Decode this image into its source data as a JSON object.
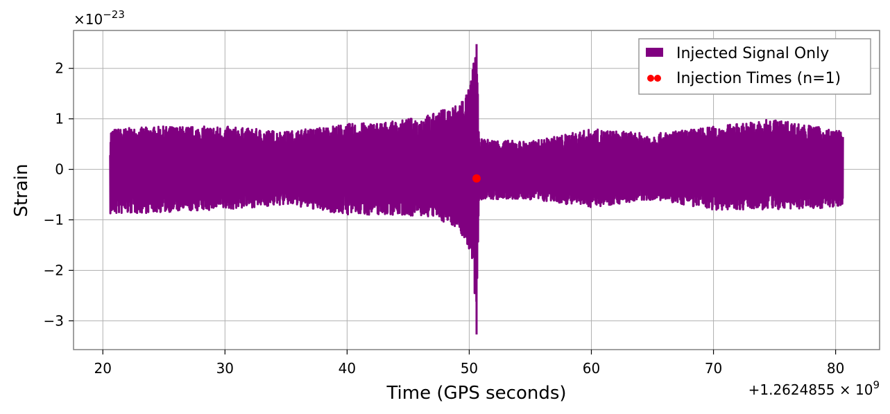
{
  "chart_data": {
    "type": "line",
    "xlabel": "Time (GPS seconds)",
    "ylabel": "Strain",
    "x_offset_label": "+1.2624855 × 10",
    "x_offset_exponent": "9",
    "y_scale_label": "×10",
    "y_scale_exponent": "−23",
    "xlim": [
      17.6,
      83.6
    ],
    "ylim": [
      -3.57,
      2.75
    ],
    "x_ticks": [
      20,
      30,
      40,
      50,
      60,
      70,
      80
    ],
    "x_tick_labels": [
      "20",
      "30",
      "40",
      "50",
      "60",
      "70",
      "80"
    ],
    "y_ticks": [
      2,
      1,
      0,
      -1,
      -2,
      -3
    ],
    "y_tick_labels": [
      "2",
      "1",
      "0",
      "−1",
      "−2",
      "−3"
    ],
    "grid": true,
    "legend_position": "top-right",
    "series": [
      {
        "name": "Injected Signal Only",
        "kind": "line",
        "color": "#800080",
        "x_start": 20.6,
        "x_end": 80.6,
        "envelope": [
          {
            "x": 20.6,
            "ymin": -0.9,
            "ymax": 0.8
          },
          {
            "x": 25.0,
            "ymin": -0.85,
            "ymax": 0.85
          },
          {
            "x": 30.0,
            "ymin": -0.8,
            "ymax": 0.85
          },
          {
            "x": 35.0,
            "ymin": -0.7,
            "ymax": 0.75
          },
          {
            "x": 40.0,
            "ymin": -0.9,
            "ymax": 0.9
          },
          {
            "x": 44.0,
            "ymin": -0.9,
            "ymax": 0.95
          },
          {
            "x": 47.0,
            "ymin": -0.95,
            "ymax": 1.1
          },
          {
            "x": 49.0,
            "ymin": -1.15,
            "ymax": 1.3
          },
          {
            "x": 50.0,
            "ymin": -1.6,
            "ymax": 1.6
          },
          {
            "x": 50.4,
            "ymin": -2.4,
            "ymax": 2.2
          },
          {
            "x": 50.6,
            "ymin": -3.27,
            "ymax": 2.48
          },
          {
            "x": 50.8,
            "ymin": -0.6,
            "ymax": 0.6
          },
          {
            "x": 55.0,
            "ymin": -0.6,
            "ymax": 0.55
          },
          {
            "x": 60.0,
            "ymin": -0.75,
            "ymax": 0.8
          },
          {
            "x": 65.0,
            "ymin": -0.6,
            "ymax": 0.7
          },
          {
            "x": 70.0,
            "ymin": -0.8,
            "ymax": 0.85
          },
          {
            "x": 75.0,
            "ymin": -0.8,
            "ymax": 1.0
          },
          {
            "x": 80.6,
            "ymin": -0.75,
            "ymax": 0.75
          }
        ]
      },
      {
        "name": "Injection Times (n=1)",
        "kind": "scatter",
        "color": "#ff0000",
        "points": [
          {
            "x": 50.6,
            "y": -0.18
          }
        ]
      }
    ]
  }
}
